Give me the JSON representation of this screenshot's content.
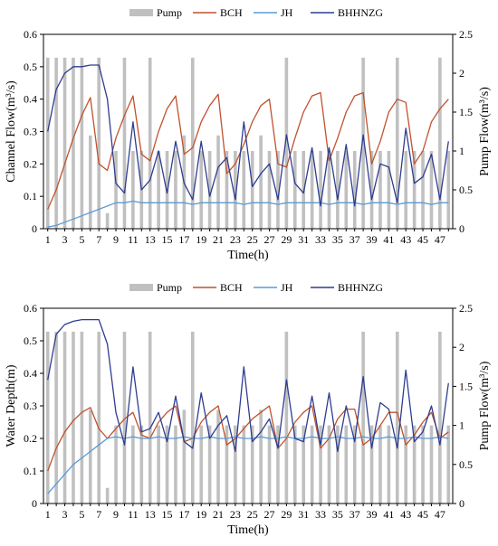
{
  "legend_labels": {
    "pump": "Pump",
    "bch": "BCH",
    "jh": "JH",
    "bhhnzg": "BHHNZG"
  },
  "colors": {
    "pump": "#c0c0c0",
    "bch": "#c0522d",
    "jh": "#5b9bd5",
    "bhhnzg": "#2e3d8f"
  },
  "chart_data": [
    {
      "type": "bar+line",
      "xlabel": "Time(h)",
      "ylabel": "Channel Flow(m³/s)",
      "y2label": "Pump Flow(m³/s)",
      "x": [
        1,
        2,
        3,
        4,
        5,
        6,
        7,
        8,
        9,
        10,
        11,
        12,
        13,
        14,
        15,
        16,
        17,
        18,
        19,
        20,
        21,
        22,
        23,
        24,
        25,
        26,
        27,
        28,
        29,
        30,
        31,
        32,
        33,
        34,
        35,
        36,
        37,
        38,
        39,
        40,
        41,
        42,
        43,
        44,
        45,
        46,
        47,
        48
      ],
      "xticks": [
        1,
        3,
        5,
        7,
        9,
        11,
        13,
        15,
        17,
        19,
        21,
        23,
        25,
        27,
        29,
        31,
        33,
        35,
        37,
        39,
        41,
        43,
        45,
        47
      ],
      "ylim": [
        0,
        0.6
      ],
      "yticks": [
        0,
        0.1,
        0.2,
        0.3,
        0.4,
        0.5,
        0.6
      ],
      "y2lim": [
        0,
        2.5
      ],
      "y2ticks": [
        0,
        0.5,
        1,
        1.5,
        2,
        2.5
      ],
      "legend_position": "top",
      "bars": {
        "name": "Pump",
        "axis": "right",
        "values": [
          2.2,
          2.2,
          2.2,
          2.2,
          2.2,
          1.2,
          2.2,
          0.2,
          1.0,
          2.2,
          1.0,
          1.0,
          2.2,
          1.0,
          1.0,
          1.0,
          1.2,
          2.2,
          1.0,
          1.0,
          1.2,
          1.0,
          1.0,
          1.0,
          1.0,
          1.2,
          1.0,
          1.0,
          2.2,
          1.0,
          1.0,
          1.0,
          1.0,
          1.0,
          1.0,
          1.0,
          1.0,
          2.2,
          1.0,
          1.0,
          1.0,
          2.2,
          1.0,
          1.0,
          1.0,
          1.0,
          2.2,
          1.0
        ]
      },
      "series": [
        {
          "name": "BCH",
          "values": [
            0.06,
            0.12,
            0.2,
            0.28,
            0.35,
            0.405,
            0.2,
            0.18,
            0.28,
            0.35,
            0.41,
            0.23,
            0.21,
            0.3,
            0.37,
            0.41,
            0.23,
            0.25,
            0.33,
            0.38,
            0.415,
            0.17,
            0.2,
            0.26,
            0.33,
            0.38,
            0.4,
            0.2,
            0.19,
            0.28,
            0.36,
            0.41,
            0.42,
            0.21,
            0.28,
            0.36,
            0.41,
            0.42,
            0.2,
            0.27,
            0.36,
            0.4,
            0.39,
            0.2,
            0.24,
            0.33,
            0.37,
            0.4
          ]
        },
        {
          "name": "JH",
          "values": [
            0.005,
            0.01,
            0.02,
            0.03,
            0.04,
            0.05,
            0.06,
            0.07,
            0.08,
            0.08,
            0.085,
            0.08,
            0.08,
            0.08,
            0.08,
            0.08,
            0.08,
            0.075,
            0.08,
            0.08,
            0.08,
            0.08,
            0.08,
            0.075,
            0.08,
            0.08,
            0.08,
            0.075,
            0.08,
            0.08,
            0.08,
            0.08,
            0.08,
            0.075,
            0.08,
            0.08,
            0.08,
            0.075,
            0.08,
            0.08,
            0.08,
            0.075,
            0.08,
            0.08,
            0.08,
            0.075,
            0.08,
            0.08
          ]
        },
        {
          "name": "BHHNZG",
          "values": [
            0.3,
            0.43,
            0.48,
            0.5,
            0.5,
            0.505,
            0.505,
            0.4,
            0.14,
            0.11,
            0.33,
            0.12,
            0.15,
            0.24,
            0.11,
            0.27,
            0.14,
            0.09,
            0.27,
            0.1,
            0.19,
            0.22,
            0.09,
            0.33,
            0.13,
            0.17,
            0.2,
            0.09,
            0.29,
            0.14,
            0.11,
            0.25,
            0.07,
            0.25,
            0.09,
            0.26,
            0.07,
            0.29,
            0.09,
            0.2,
            0.19,
            0.08,
            0.31,
            0.14,
            0.16,
            0.23,
            0.09,
            0.27
          ]
        }
      ]
    },
    {
      "type": "bar+line",
      "xlabel": "Time(h)",
      "ylabel": "Water Depth(m)",
      "y2label": "Pump Flow(m³/s)",
      "x": [
        1,
        2,
        3,
        4,
        5,
        6,
        7,
        8,
        9,
        10,
        11,
        12,
        13,
        14,
        15,
        16,
        17,
        18,
        19,
        20,
        21,
        22,
        23,
        24,
        25,
        26,
        27,
        28,
        29,
        30,
        31,
        32,
        33,
        34,
        35,
        36,
        37,
        38,
        39,
        40,
        41,
        42,
        43,
        44,
        45,
        46,
        47,
        48
      ],
      "xticks": [
        1,
        3,
        5,
        7,
        9,
        11,
        13,
        15,
        17,
        19,
        21,
        23,
        25,
        27,
        29,
        31,
        33,
        35,
        37,
        39,
        41,
        43,
        45,
        47
      ],
      "ylim": [
        0,
        0.6
      ],
      "yticks": [
        0,
        0.1,
        0.2,
        0.3,
        0.4,
        0.5,
        0.6
      ],
      "y2lim": [
        0,
        2.5
      ],
      "y2ticks": [
        0,
        0.5,
        1,
        1.5,
        2,
        2.5
      ],
      "legend_position": "top",
      "bars": {
        "name": "Pump",
        "axis": "right",
        "values": [
          2.2,
          2.2,
          2.2,
          2.2,
          2.2,
          1.2,
          2.2,
          0.2,
          1.0,
          2.2,
          1.0,
          1.0,
          2.2,
          1.0,
          1.0,
          1.0,
          1.2,
          2.2,
          1.0,
          1.0,
          1.2,
          1.0,
          1.0,
          1.0,
          1.0,
          1.2,
          1.0,
          1.0,
          2.2,
          1.0,
          1.0,
          1.0,
          1.0,
          1.0,
          1.0,
          1.0,
          1.0,
          2.2,
          1.0,
          1.0,
          1.0,
          2.2,
          1.0,
          1.0,
          1.0,
          1.0,
          2.2,
          1.0
        ]
      },
      "series": [
        {
          "name": "BCH",
          "values": [
            0.1,
            0.17,
            0.22,
            0.255,
            0.28,
            0.295,
            0.23,
            0.2,
            0.23,
            0.26,
            0.28,
            0.21,
            0.2,
            0.25,
            0.28,
            0.3,
            0.19,
            0.2,
            0.25,
            0.28,
            0.3,
            0.18,
            0.2,
            0.23,
            0.26,
            0.28,
            0.3,
            0.17,
            0.2,
            0.25,
            0.28,
            0.3,
            0.17,
            0.2,
            0.26,
            0.29,
            0.29,
            0.18,
            0.2,
            0.24,
            0.28,
            0.28,
            0.18,
            0.21,
            0.25,
            0.28,
            0.2,
            0.22
          ]
        },
        {
          "name": "JH",
          "values": [
            0.03,
            0.06,
            0.09,
            0.12,
            0.14,
            0.16,
            0.18,
            0.2,
            0.205,
            0.2,
            0.205,
            0.2,
            0.2,
            0.205,
            0.2,
            0.2,
            0.205,
            0.2,
            0.2,
            0.205,
            0.2,
            0.2,
            0.205,
            0.2,
            0.2,
            0.205,
            0.2,
            0.2,
            0.205,
            0.2,
            0.2,
            0.205,
            0.2,
            0.2,
            0.205,
            0.2,
            0.2,
            0.205,
            0.2,
            0.2,
            0.205,
            0.2,
            0.2,
            0.205,
            0.2,
            0.2,
            0.205,
            0.2
          ]
        },
        {
          "name": "BHHNZG",
          "values": [
            0.38,
            0.52,
            0.55,
            0.56,
            0.565,
            0.565,
            0.565,
            0.49,
            0.28,
            0.18,
            0.42,
            0.22,
            0.23,
            0.28,
            0.19,
            0.33,
            0.19,
            0.17,
            0.34,
            0.2,
            0.24,
            0.27,
            0.16,
            0.42,
            0.19,
            0.22,
            0.26,
            0.17,
            0.38,
            0.2,
            0.19,
            0.33,
            0.18,
            0.34,
            0.16,
            0.3,
            0.19,
            0.39,
            0.17,
            0.31,
            0.29,
            0.17,
            0.41,
            0.19,
            0.22,
            0.3,
            0.18,
            0.37
          ]
        }
      ]
    }
  ]
}
